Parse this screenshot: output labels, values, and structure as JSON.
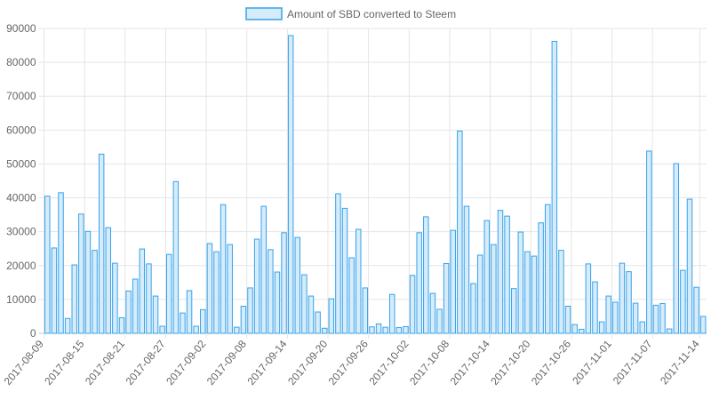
{
  "chart_data": {
    "type": "bar",
    "legend": {
      "position": "top",
      "label": "Amount of SBD converted to Steem",
      "fill": "#d6ecfa",
      "stroke": "#36a2eb"
    },
    "xlabel": "",
    "ylabel": "",
    "ylim": [
      0,
      90000
    ],
    "y_ticks": [
      "0",
      "10000",
      "20000",
      "30000",
      "40000",
      "50000",
      "60000",
      "70000",
      "80000",
      "90000"
    ],
    "grid": true,
    "x_tick_labels": [
      "2017-08-09",
      "2017-08-15",
      "2017-08-21",
      "2017-08-27",
      "2017-09-02",
      "2017-09-08",
      "2017-09-14",
      "2017-09-20",
      "2017-09-26",
      "2017-10-02",
      "2017-10-08",
      "2017-10-14",
      "2017-10-20",
      "2017-10-26",
      "2017-11-01",
      "2017-11-07",
      "2017-11-14"
    ],
    "x_start": "2017-08-09",
    "x_end": "2017-11-14",
    "values": [
      40500,
      25200,
      41500,
      4400,
      20200,
      35200,
      30100,
      24500,
      52900,
      31200,
      20700,
      4600,
      12500,
      16000,
      24900,
      20500,
      11000,
      2100,
      23300,
      44800,
      6000,
      12600,
      2100,
      7000,
      26500,
      24100,
      38000,
      26200,
      1800,
      8000,
      13400,
      27800,
      37500,
      24700,
      18100,
      29700,
      87900,
      28300,
      17300,
      11000,
      6300,
      1500,
      10200,
      41200,
      36900,
      22300,
      30700,
      13400,
      1900,
      2800,
      1800,
      11500,
      1700,
      2000,
      17100,
      29700,
      34400,
      11800,
      7100,
      20600,
      30400,
      59700,
      37500,
      14700,
      23100,
      33300,
      26200,
      36300,
      34600,
      13200,
      29900,
      24100,
      22800,
      32600,
      38000,
      86200,
      24500,
      8000,
      2600,
      1200,
      20500,
      15200,
      3400,
      11000,
      9200,
      20700,
      18200,
      8900,
      3400,
      53800,
      8300,
      8800,
      1300,
      50100,
      18600,
      39600,
      13600,
      5000
    ],
    "colors": {
      "bar_fill": "#d6ecfa",
      "bar_stroke": "#36a2eb",
      "grid": "#e5e5e5",
      "axis": "#c8c8c8",
      "text": "#666666"
    }
  }
}
